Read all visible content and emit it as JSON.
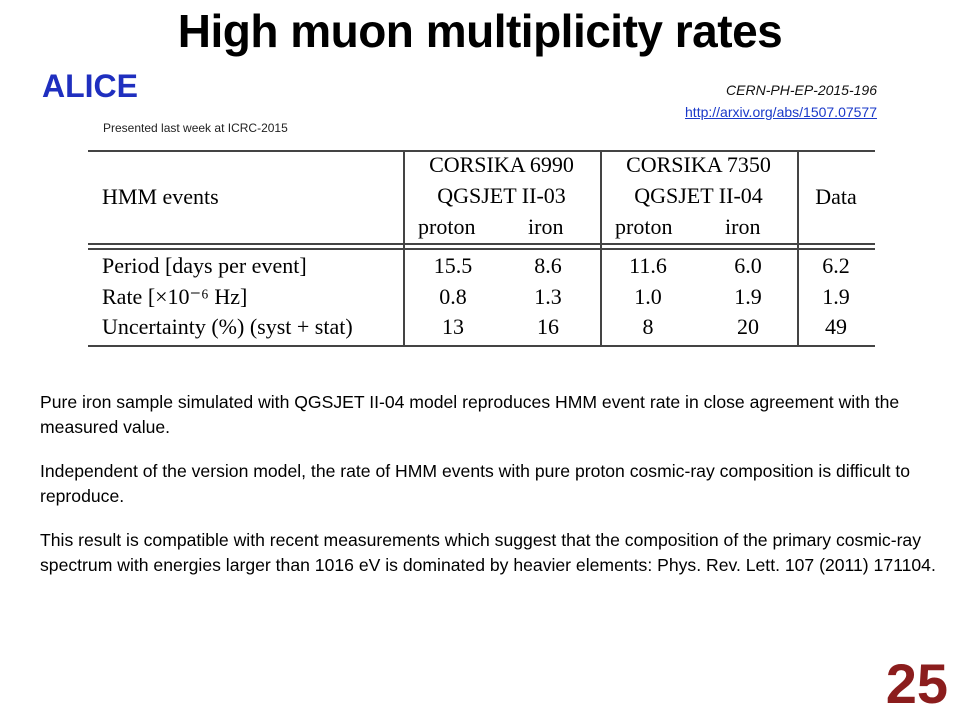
{
  "slide": {
    "title": "High muon multiplicity rates",
    "subtitle": "ALICE",
    "reference_code": "CERN-PH-EP-2015-196",
    "reference_link": "http://arxiv.org/abs/1507.07577",
    "presented": "Presented last week at ICRC-2015",
    "page_number": "25"
  },
  "table": {
    "row_header_label": "HMM events",
    "groups": [
      {
        "line1": "CORSIKA 6990",
        "line2": "QGSJET II-03",
        "proton": "proton",
        "iron": "iron"
      },
      {
        "line1": "CORSIKA 7350",
        "line2": "QGSJET II-04",
        "proton": "proton",
        "iron": "iron"
      }
    ],
    "data_header": "Data",
    "rows": [
      {
        "label": "Period [days per event]",
        "values": [
          "15.5",
          "8.6",
          "11.6",
          "6.0",
          "6.2"
        ]
      },
      {
        "label": "Rate [×10⁻⁶ Hz]",
        "values": [
          "0.8",
          "1.3",
          "1.0",
          "1.9",
          "1.9"
        ]
      },
      {
        "label": "Uncertainty (%) (syst + stat)",
        "values": [
          "13",
          "16",
          "8",
          "20",
          "49"
        ]
      }
    ]
  },
  "paragraphs": [
    "Pure iron sample simulated with QGSJET II-04 model reproduces HMM event rate in close agreement with the measured value.",
    "Independent of the version model, the rate of HMM events with pure proton cosmic-ray composition is difficult to reproduce.",
    "This result is compatible with recent measurements which suggest that the composition of the primary cosmic-ray spectrum with energies larger than 1016 eV is dominated by heavier elements: Phys. Rev. Lett. 107 (2011) 171104."
  ]
}
